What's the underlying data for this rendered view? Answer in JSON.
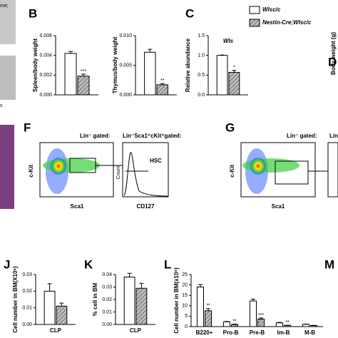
{
  "legend": {
    "series": [
      {
        "name": "Wlsc/c",
        "color": "#ffffff"
      },
      {
        "name": "Nestin-Cre;Wlsc/c",
        "color": "#8c8c8c",
        "hatch": true
      }
    ]
  },
  "chart_data": [
    {
      "type": "bar",
      "label": "B",
      "ylabel": "Spleen/body weight",
      "categories": [
        null
      ],
      "ylim": [
        0,
        0.006
      ],
      "yticks": [
        {
          "value": 0,
          "label": "0.000"
        },
        0.002,
        0.004,
        0.006
      ],
      "series": [
        {
          "values": [
            0.0042
          ],
          "errors": [
            0.0002
          ]
        },
        {
          "values": [
            0.0019
          ],
          "errors": [
            0.0002
          ],
          "annotations": [
            "***"
          ]
        }
      ]
    },
    {
      "type": "bar",
      "ylabel": "Thymus/body weight",
      "categories": [
        null
      ],
      "ylim": [
        0,
        0.01
      ],
      "yticks": [
        {
          "value": 0,
          "label": "0.000"
        },
        0.005,
        {
          "value": 0.01,
          "label": "0.010"
        }
      ],
      "series": [
        {
          "values": [
            0.0072
          ],
          "errors": [
            0.0005
          ]
        },
        {
          "values": [
            0.0017
          ],
          "errors": [
            0.0002
          ],
          "annotations": [
            "**"
          ]
        }
      ]
    },
    {
      "type": "bar",
      "label": "C",
      "title": "Wls",
      "ylabel": "Relative abundance",
      "categories": [
        null
      ],
      "ylim": [
        0,
        1.5
      ],
      "yticks": [
        {
          "value": 0,
          "label": "0.0"
        },
        0.5,
        {
          "value": 1,
          "label": "1.0"
        },
        1.5
      ],
      "series": [
        {
          "values": [
            1.0
          ],
          "errors": [
            0.01
          ]
        },
        {
          "values": [
            0.57
          ],
          "errors": [
            0.05
          ],
          "annotations": [
            "*"
          ]
        }
      ]
    },
    {
      "type": "bar",
      "label": "J",
      "ylabel": "Cell number in BM(X10⁶)",
      "categories": [
        "CLP"
      ],
      "ylim": [
        0,
        0.03
      ],
      "yticks": [
        {
          "value": 0,
          "label": "0.00"
        },
        0.01,
        0.02,
        0.03
      ],
      "series": [
        {
          "values": [
            0.02
          ],
          "errors": [
            0.0045
          ]
        },
        {
          "values": [
            0.011
          ],
          "errors": [
            0.0018
          ]
        }
      ]
    },
    {
      "type": "bar",
      "label": "K",
      "ylabel": "% cell in BM",
      "categories": [
        "CLP"
      ],
      "ylim": [
        0,
        0.04
      ],
      "yticks": [
        {
          "value": 0,
          "label": "0.00"
        },
        0.01,
        0.02,
        0.03,
        0.04
      ],
      "series": [
        {
          "values": [
            0.038
          ],
          "errors": [
            0.003
          ]
        },
        {
          "values": [
            0.029
          ],
          "errors": [
            0.004
          ]
        }
      ]
    },
    {
      "type": "bar",
      "label": "L",
      "ylabel": "Cell number in BM(x10⁶)",
      "categories": [
        "B220+",
        "Pro-B",
        "Pre-B",
        "Im-B",
        "M-B"
      ],
      "ylim": [
        0,
        25
      ],
      "yticks": [
        0,
        5,
        10,
        15,
        20,
        25
      ],
      "series": [
        {
          "values": [
            19,
            2.3,
            12.3,
            1.8,
            1.1
          ],
          "errors": [
            1.2,
            0.2,
            0.9,
            0.2,
            0.1
          ]
        },
        {
          "values": [
            7.6,
            1.0,
            3.6,
            0.6,
            0.5
          ],
          "errors": [
            1.0,
            0.2,
            0.5,
            0.1,
            0.1
          ],
          "annotations": [
            "**",
            "**",
            "***",
            "**",
            null
          ]
        }
      ]
    }
  ],
  "panels": {
    "D": {
      "label": "D",
      "ylabel": "Body weight (g)"
    },
    "M": {
      "label": "M"
    },
    "F": {
      "label": "F",
      "gate1": "Lin⁻ gated:",
      "gate2": "Lin⁻Sca1⁺cKit⁺gated:",
      "yaxis": "c-Kit",
      "xaxis1": "Sca1",
      "xaxis2": "CD127",
      "hist_y": "Count",
      "population": "HSC"
    },
    "G": {
      "label": "G",
      "gate1": "Lin⁻ gated:",
      "gate2": "Lin",
      "yaxis": "c-Kit",
      "xaxis1": "Sca1"
    },
    "fragments": [
      "me;",
      "s"
    ]
  }
}
